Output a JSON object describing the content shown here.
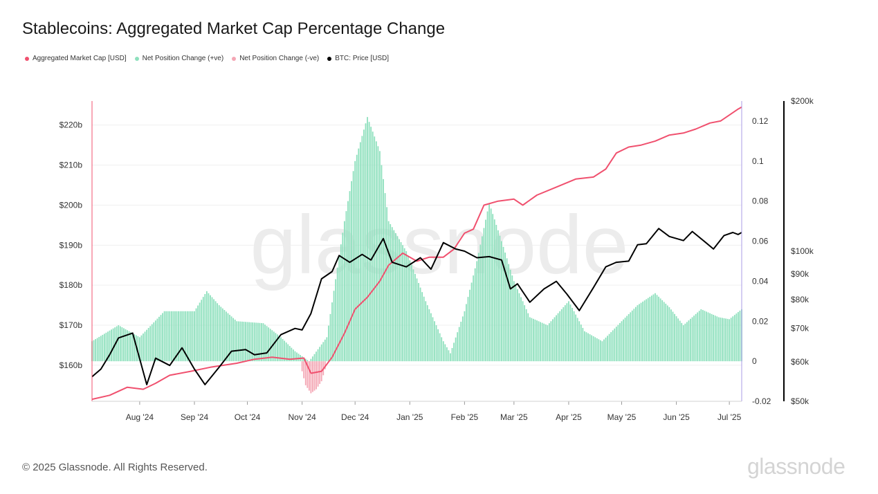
{
  "title": "Stablecoins: Aggregated Market Cap Percentage Change",
  "legend": [
    {
      "label": "Aggregated Market Cap [USD]",
      "color": "#f0506e"
    },
    {
      "label": "Net Position Change (+ve)",
      "color": "#8ee0bd"
    },
    {
      "label": "Net Position Change (-ve)",
      "color": "#f4a6b4"
    },
    {
      "label": "BTC: Price [USD]",
      "color": "#000000"
    }
  ],
  "footer": "© 2025 Glassnode. All Rights Reserved.",
  "brand": "glassnode",
  "watermark": "glassnode",
  "chart_data": {
    "type": "line",
    "grid": true,
    "x_ticks": [
      "Aug '24",
      "Sep '24",
      "Oct '24",
      "Nov '24",
      "Dec '24",
      "Jan '25",
      "Feb '25",
      "Mar '25",
      "Apr '25",
      "May '25",
      "Jun '25",
      "Jul '25"
    ],
    "x_tick_dates": [
      "2024-08-01",
      "2024-09-01",
      "2024-10-01",
      "2024-11-01",
      "2024-12-01",
      "2025-01-01",
      "2025-02-01",
      "2025-03-01",
      "2025-04-01",
      "2025-05-01",
      "2025-06-01",
      "2025-07-01"
    ],
    "x_range": [
      "2024-07-05",
      "2025-07-08"
    ],
    "y_left": {
      "label": "Aggregated Market Cap [USD]",
      "ticks": [
        "$160b",
        "$170b",
        "$180b",
        "$190b",
        "$200b",
        "$210b",
        "$220b"
      ],
      "tick_values": [
        160,
        170,
        180,
        190,
        200,
        210,
        220
      ],
      "range": [
        151,
        226
      ],
      "unit": "$b"
    },
    "y_right1": {
      "label": "Net Position Change",
      "ticks": [
        "-0.02",
        "0",
        "0.02",
        "0.04",
        "0.06",
        "0.08",
        "0.1",
        "0.12"
      ],
      "tick_values": [
        -0.02,
        0,
        0.02,
        0.04,
        0.06,
        0.08,
        0.1,
        0.12
      ],
      "range": [
        -0.02,
        0.13
      ]
    },
    "y_right2": {
      "label": "BTC: Price [USD]",
      "scale": "log",
      "ticks": [
        "$50k",
        "$60k",
        "$70k",
        "$80k",
        "$90k",
        "$100k",
        "$200k"
      ],
      "tick_values": [
        50000,
        60000,
        70000,
        80000,
        90000,
        100000,
        200000
      ],
      "range": [
        50000,
        200000
      ]
    },
    "series": [
      {
        "name": "Aggregated Market Cap [USD]",
        "axis": "left",
        "color": "#f0506e",
        "points": [
          [
            "2024-07-05",
            151.5
          ],
          [
            "2024-07-15",
            152.5
          ],
          [
            "2024-07-25",
            154.5
          ],
          [
            "2024-08-03",
            154
          ],
          [
            "2024-08-10",
            155.5
          ],
          [
            "2024-08-18",
            157.5
          ],
          [
            "2024-08-30",
            158.5
          ],
          [
            "2024-09-10",
            159.5
          ],
          [
            "2024-09-25",
            160.5
          ],
          [
            "2024-10-05",
            161.5
          ],
          [
            "2024-10-15",
            162
          ],
          [
            "2024-10-25",
            161.5
          ],
          [
            "2024-11-02",
            161.8
          ],
          [
            "2024-11-06",
            158
          ],
          [
            "2024-11-12",
            158.5
          ],
          [
            "2024-11-18",
            162
          ],
          [
            "2024-11-25",
            168
          ],
          [
            "2024-12-01",
            174
          ],
          [
            "2024-12-08",
            177
          ],
          [
            "2024-12-15",
            181
          ],
          [
            "2024-12-20",
            185
          ],
          [
            "2024-12-28",
            188
          ],
          [
            "2025-01-05",
            186
          ],
          [
            "2025-01-12",
            187
          ],
          [
            "2025-01-20",
            187
          ],
          [
            "2025-01-26",
            189
          ],
          [
            "2025-02-01",
            193
          ],
          [
            "2025-02-06",
            194
          ],
          [
            "2025-02-12",
            200
          ],
          [
            "2025-02-20",
            201
          ],
          [
            "2025-03-01",
            201.5
          ],
          [
            "2025-03-06",
            200
          ],
          [
            "2025-03-14",
            202.5
          ],
          [
            "2025-03-25",
            204.5
          ],
          [
            "2025-04-05",
            206.5
          ],
          [
            "2025-04-15",
            207
          ],
          [
            "2025-04-22",
            209
          ],
          [
            "2025-04-28",
            213
          ],
          [
            "2025-05-05",
            214.5
          ],
          [
            "2025-05-12",
            215
          ],
          [
            "2025-05-20",
            216
          ],
          [
            "2025-05-28",
            217.5
          ],
          [
            "2025-06-05",
            218
          ],
          [
            "2025-06-12",
            219
          ],
          [
            "2025-06-20",
            220.5
          ],
          [
            "2025-06-26",
            221
          ],
          [
            "2025-07-01",
            222.5
          ],
          [
            "2025-07-06",
            224
          ],
          [
            "2025-07-08",
            224.5
          ]
        ]
      },
      {
        "name": "BTC: Price [USD]",
        "axis": "right2",
        "color": "#000000",
        "points": [
          [
            "2024-07-05",
            56000
          ],
          [
            "2024-07-10",
            58000
          ],
          [
            "2024-07-15",
            62000
          ],
          [
            "2024-07-20",
            67000
          ],
          [
            "2024-07-28",
            68500
          ],
          [
            "2024-08-05",
            54000
          ],
          [
            "2024-08-10",
            61000
          ],
          [
            "2024-08-18",
            59000
          ],
          [
            "2024-08-25",
            64000
          ],
          [
            "2024-09-01",
            58000
          ],
          [
            "2024-09-07",
            54000
          ],
          [
            "2024-09-15",
            58500
          ],
          [
            "2024-09-22",
            63000
          ],
          [
            "2024-09-30",
            63500
          ],
          [
            "2024-10-05",
            62000
          ],
          [
            "2024-10-12",
            62500
          ],
          [
            "2024-10-20",
            68000
          ],
          [
            "2024-10-28",
            70000
          ],
          [
            "2024-11-01",
            69500
          ],
          [
            "2024-11-06",
            75000
          ],
          [
            "2024-11-12",
            88000
          ],
          [
            "2024-11-18",
            91000
          ],
          [
            "2024-11-22",
            98000
          ],
          [
            "2024-11-28",
            95000
          ],
          [
            "2024-12-05",
            98500
          ],
          [
            "2024-12-10",
            96000
          ],
          [
            "2024-12-17",
            106000
          ],
          [
            "2024-12-22",
            95000
          ],
          [
            "2024-12-30",
            93000
          ],
          [
            "2025-01-07",
            97000
          ],
          [
            "2025-01-13",
            92000
          ],
          [
            "2025-01-20",
            104000
          ],
          [
            "2025-01-27",
            101000
          ],
          [
            "2025-02-01",
            100000
          ],
          [
            "2025-02-08",
            97000
          ],
          [
            "2025-02-15",
            97500
          ],
          [
            "2025-02-22",
            96000
          ],
          [
            "2025-02-27",
            84000
          ],
          [
            "2025-03-03",
            86000
          ],
          [
            "2025-03-10",
            79000
          ],
          [
            "2025-03-18",
            84000
          ],
          [
            "2025-03-25",
            87000
          ],
          [
            "2025-03-31",
            82000
          ],
          [
            "2025-04-07",
            76000
          ],
          [
            "2025-04-15",
            84500
          ],
          [
            "2025-04-22",
            93000
          ],
          [
            "2025-04-28",
            95000
          ],
          [
            "2025-05-05",
            95500
          ],
          [
            "2025-05-10",
            103000
          ],
          [
            "2025-05-15",
            103500
          ],
          [
            "2025-05-22",
            111000
          ],
          [
            "2025-05-28",
            107000
          ],
          [
            "2025-06-05",
            105000
          ],
          [
            "2025-06-10",
            109500
          ],
          [
            "2025-06-17",
            104500
          ],
          [
            "2025-06-22",
            101000
          ],
          [
            "2025-06-28",
            107500
          ],
          [
            "2025-07-03",
            109000
          ],
          [
            "2025-07-06",
            108000
          ],
          [
            "2025-07-08",
            109000
          ]
        ]
      },
      {
        "name": "Net Position Change (+ve)",
        "axis": "right1",
        "color": "#8ee0bd",
        "points": [
          [
            "2024-07-05",
            0.01
          ],
          [
            "2024-07-20",
            0.018
          ],
          [
            "2024-08-01",
            0.012
          ],
          [
            "2024-08-15",
            0.025
          ],
          [
            "2024-09-01",
            0.025
          ],
          [
            "2024-09-08",
            0.035
          ],
          [
            "2024-09-15",
            0.028
          ],
          [
            "2024-09-25",
            0.02
          ],
          [
            "2024-10-10",
            0.019
          ],
          [
            "2024-10-20",
            0.012
          ],
          [
            "2024-10-28",
            0.005
          ],
          [
            "2024-11-05",
            0
          ],
          [
            "2024-11-15",
            0.012
          ],
          [
            "2024-11-25",
            0.07
          ],
          [
            "2024-12-01",
            0.1
          ],
          [
            "2024-12-08",
            0.122
          ],
          [
            "2024-12-15",
            0.105
          ],
          [
            "2024-12-20",
            0.07
          ],
          [
            "2024-12-30",
            0.055
          ],
          [
            "2025-01-10",
            0.03
          ],
          [
            "2025-01-20",
            0.01
          ],
          [
            "2025-01-24",
            0.004
          ],
          [
            "2025-02-01",
            0.025
          ],
          [
            "2025-02-08",
            0.05
          ],
          [
            "2025-02-15",
            0.079
          ],
          [
            "2025-02-22",
            0.06
          ],
          [
            "2025-03-01",
            0.04
          ],
          [
            "2025-03-10",
            0.022
          ],
          [
            "2025-03-20",
            0.018
          ],
          [
            "2025-04-01",
            0.03
          ],
          [
            "2025-04-10",
            0.015
          ],
          [
            "2025-04-20",
            0.01
          ],
          [
            "2025-05-01",
            0.02
          ],
          [
            "2025-05-10",
            0.028
          ],
          [
            "2025-05-20",
            0.034
          ],
          [
            "2025-05-28",
            0.027
          ],
          [
            "2025-06-05",
            0.018
          ],
          [
            "2025-06-15",
            0.026
          ],
          [
            "2025-06-25",
            0.022
          ],
          [
            "2025-07-01",
            0.021
          ],
          [
            "2025-07-08",
            0.026
          ]
        ]
      },
      {
        "name": "Net Position Change (-ve)",
        "axis": "right1",
        "color": "#f4a6b4",
        "points": [
          [
            "2024-11-01",
            -0.005
          ],
          [
            "2024-11-03",
            -0.012
          ],
          [
            "2024-11-06",
            -0.016
          ],
          [
            "2024-11-09",
            -0.014
          ],
          [
            "2024-11-12",
            -0.01
          ],
          [
            "2024-11-14",
            -0.004
          ]
        ]
      }
    ]
  }
}
